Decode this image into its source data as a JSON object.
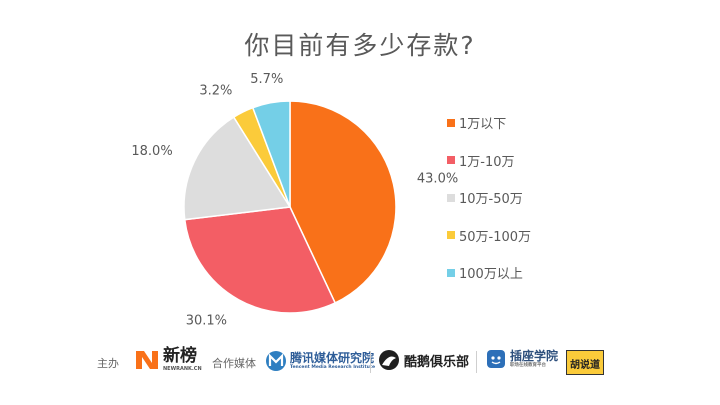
{
  "chart_data": {
    "type": "pie",
    "title": "你目前有多少存款?",
    "categories": [
      "1万以下",
      "1万-10万",
      "10万-50万",
      "50万-100万",
      "100万以上"
    ],
    "values": [
      43.0,
      30.1,
      18.0,
      3.2,
      5.7
    ],
    "labels": [
      "43.0%",
      "30.1%",
      "18.0%",
      "3.2%",
      "5.7%"
    ],
    "colors": [
      "#F97119",
      "#F35E65",
      "#DDDDDD",
      "#FBCB3A",
      "#74CFE7"
    ],
    "legend_position": "right",
    "start": "top",
    "direction": "clockwise"
  },
  "footer": {
    "host_label": "主办",
    "host_logo": "新榜",
    "host_logo_sub": "NEWRANK.CN",
    "partner_label": "合作媒体",
    "partners": [
      {
        "name": "腾讯媒体研究院",
        "sub": "Tencent Media Research Institute",
        "icon": "tencent-media-logo-icon"
      },
      {
        "name": "酷鹅俱乐部",
        "icon": "penguin-logo-icon"
      },
      {
        "name": "插座学院",
        "sub": "职场在线教育平台",
        "icon": "socket-logo-icon"
      },
      {
        "name": "胡说道",
        "icon": "badge-logo-icon"
      }
    ]
  }
}
